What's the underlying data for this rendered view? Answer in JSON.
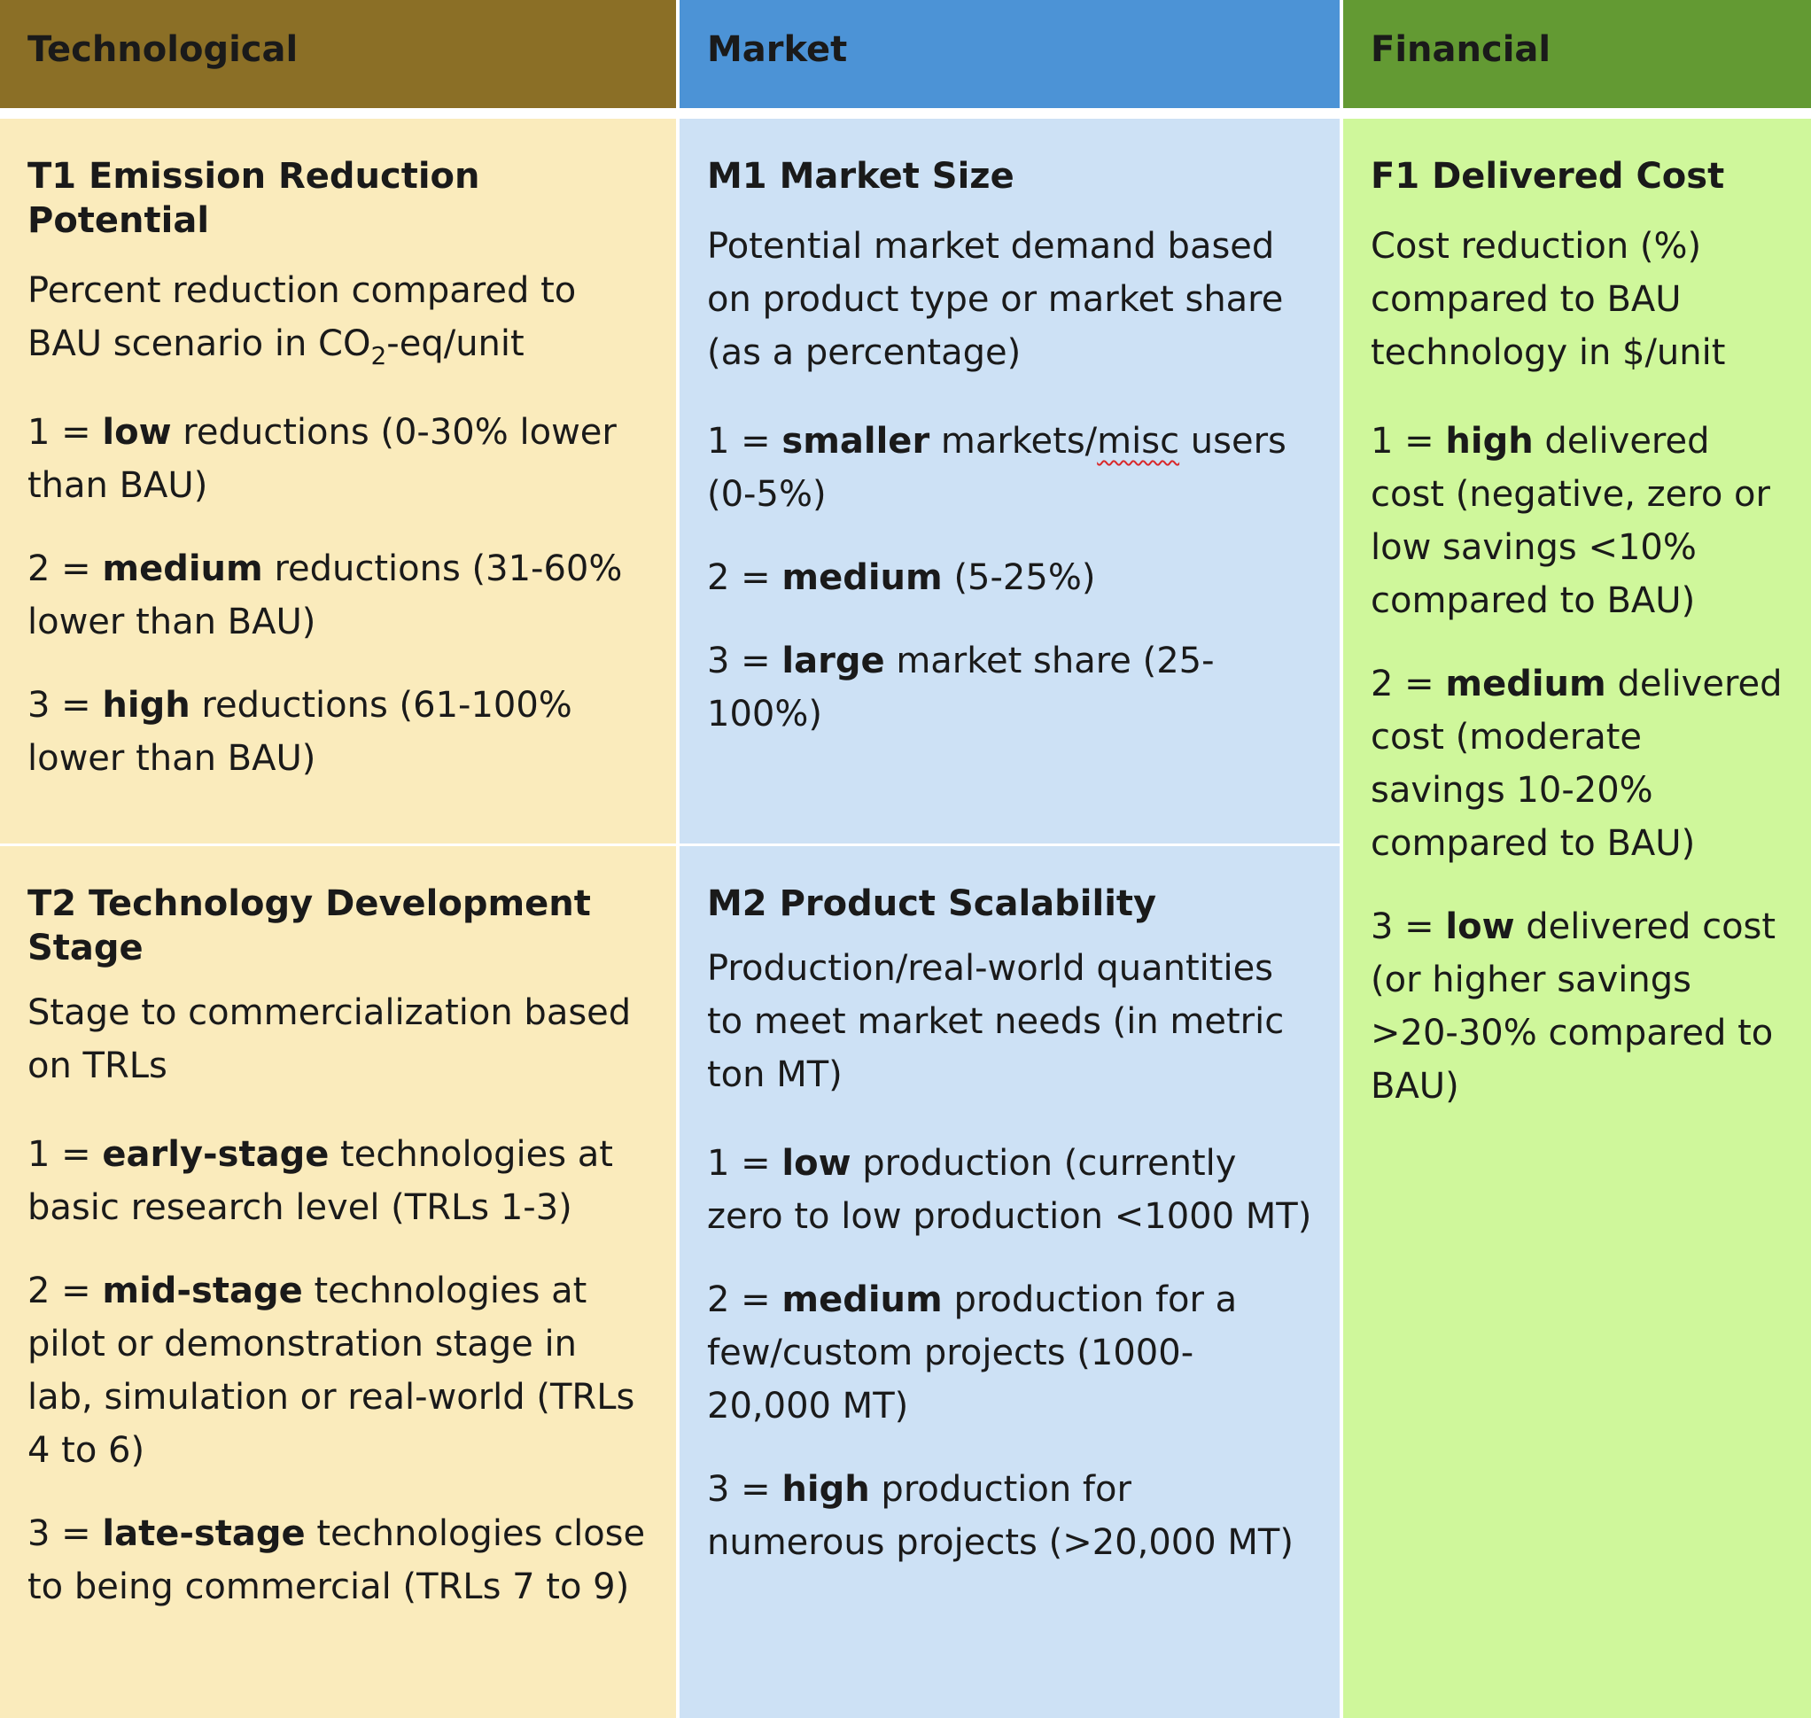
{
  "headers": {
    "technological": "Technological",
    "market": "Market",
    "financial": "Financial"
  },
  "colors": {
    "technological_header": "#8b6f26",
    "market_header": "#4c93d6",
    "financial_header": "#639a33",
    "technological_cell": "#faebbc",
    "market_cell": "#cde1f5",
    "financial_cell": "#cff79b"
  },
  "t1": {
    "title": "T1 Emission Reduction Potential",
    "desc_before": "Percent reduction compared to BAU scenario in CO",
    "desc_sub": "2",
    "desc_after": "-eq/unit",
    "items": [
      {
        "num": "1 =",
        "bold": "low",
        "rest": "reductions (0-30% lower than BAU)"
      },
      {
        "num": "2 =",
        "bold": "medium",
        "rest": "reductions (31-60% lower than BAU)"
      },
      {
        "num": "3 =",
        "bold": "high",
        "rest": "reductions (61-100% lower than BAU)"
      }
    ]
  },
  "t2": {
    "title": "T2 Technology Development Stage",
    "desc": "Stage to commercialization based on TRLs",
    "items": [
      {
        "num": "1 =",
        "bold": "early-stage",
        "rest": "technologies at basic research level (TRLs 1-3)"
      },
      {
        "num": "2 =",
        "bold": "mid-stage",
        "rest": "technologies at pilot or demonstration stage in lab, simulation or real-world (TRLs 4 to 6)"
      },
      {
        "num": "3 =",
        "bold": "late-stage",
        "rest": "technologies close to being commercial (TRLs 7 to 9)"
      }
    ]
  },
  "m1": {
    "title": "M1 Market Size",
    "desc": "Potential market demand based on product type or market share (as a percentage)",
    "items": [
      {
        "num": "1 =",
        "bold": "smaller",
        "rest_a": "markets/",
        "rest_squiggle": "misc",
        "rest_b": " users (0-5%)"
      },
      {
        "num": "2 =",
        "bold": "medium",
        "rest": "(5-25%)"
      },
      {
        "num": "3 =",
        "bold": "large",
        "rest": "market share (25-100%)"
      }
    ]
  },
  "m2": {
    "title": "M2 Product Scalability",
    "desc": "Production/real-world quantities to meet market needs (in metric ton MT)",
    "items": [
      {
        "num": "1 =",
        "bold": "low",
        "rest": "production (currently zero to low production <1000 MT)"
      },
      {
        "num": "2 =",
        "bold": "medium",
        "rest": "production for a few/custom projects (1000-20,000 MT)"
      },
      {
        "num": "3 =",
        "bold": "high",
        "rest": "production for numerous projects (>20,000 MT)"
      }
    ]
  },
  "f1": {
    "title": "F1 Delivered Cost",
    "desc": "Cost reduction (%) compared to BAU technology in $/unit",
    "items": [
      {
        "num": "1 =",
        "bold": "high",
        "rest": "delivered cost (negative, zero or low savings <10% compared to BAU)"
      },
      {
        "num": "2 =",
        "bold": "medium",
        "rest": "delivered cost (moderate savings 10-20% compared to BAU)"
      },
      {
        "num": "3 =",
        "bold": "low",
        "rest": "delivered cost (or higher savings >20-30% compared to BAU)"
      }
    ]
  }
}
